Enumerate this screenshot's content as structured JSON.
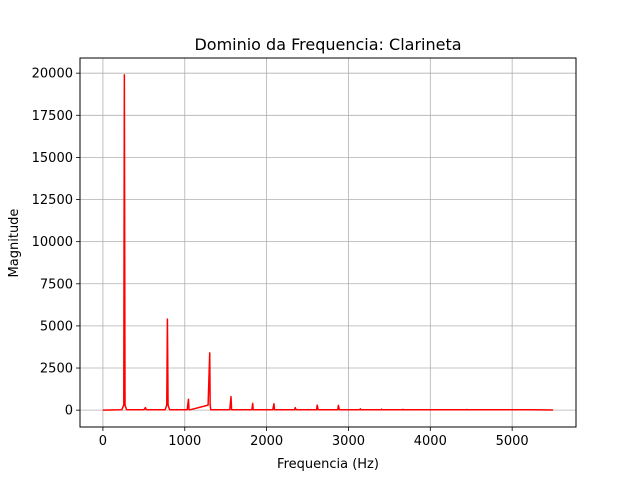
{
  "chart_data": {
    "type": "line",
    "title": "Dominio da Frequencia: Clarineta",
    "xlabel": "Frequencia (Hz)",
    "ylabel": "Magnitude",
    "xlim": [
      -280,
      5780
    ],
    "ylim": [
      -1000,
      20900
    ],
    "x_ticks": [
      0,
      1000,
      2000,
      3000,
      4000,
      5000
    ],
    "x_tick_labels": [
      "0",
      "1000",
      "2000",
      "3000",
      "4000",
      "5000"
    ],
    "y_ticks": [
      0,
      2500,
      5000,
      7500,
      10000,
      12500,
      15000,
      17500,
      20000
    ],
    "y_tick_labels": [
      "0",
      "2500",
      "5000",
      "7500",
      "10000",
      "12500",
      "15000",
      "17500",
      "20000"
    ],
    "grid": true,
    "series": [
      {
        "color": "#ff0000",
        "x": [
          0,
          230,
          255,
          262,
          270,
          290,
          500,
          520,
          530,
          760,
          780,
          788,
          796,
          815,
          1030,
          1045,
          1052,
          1065,
          1285,
          1305,
          1310,
          1318,
          1340,
          1550,
          1565,
          1572,
          1585,
          1820,
          1830,
          1836,
          1845,
          2075,
          2090,
          2096,
          2110,
          2340,
          2350,
          2360,
          2600,
          2610,
          2618,
          2630,
          2860,
          2870,
          2876,
          2890,
          3140,
          3145,
          3150,
          3400,
          3405,
          3410,
          3660,
          3665,
          3670,
          4440,
          4445,
          4450,
          5220,
          5225,
          5230,
          5500
        ],
        "y": [
          0,
          20,
          300,
          19900,
          300,
          20,
          20,
          150,
          20,
          20,
          300,
          5400,
          300,
          20,
          20,
          650,
          20,
          20,
          300,
          3400,
          300,
          20,
          20,
          20,
          800,
          20,
          20,
          20,
          400,
          20,
          20,
          20,
          380,
          20,
          20,
          20,
          150,
          20,
          20,
          20,
          300,
          20,
          20,
          20,
          280,
          20,
          20,
          80,
          20,
          20,
          60,
          20,
          20,
          50,
          20,
          20,
          40,
          20,
          20,
          30,
          20,
          10
        ]
      }
    ]
  }
}
